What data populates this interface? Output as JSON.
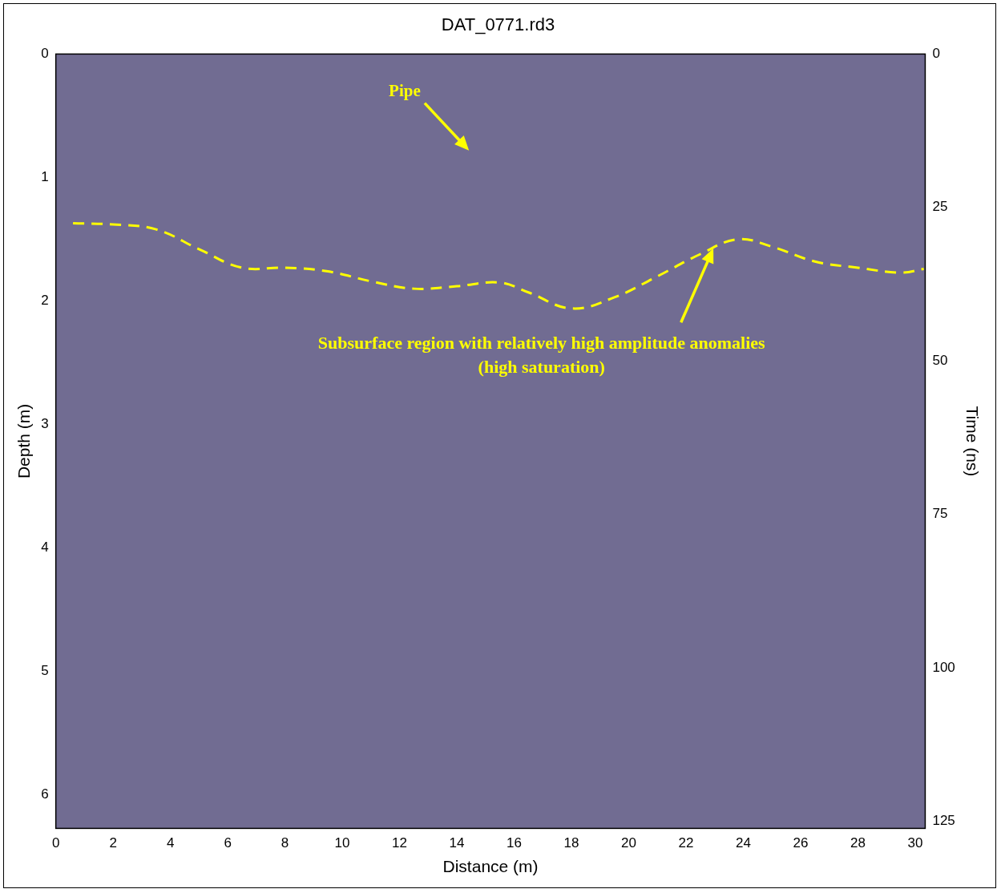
{
  "chart_data": {
    "type": "line",
    "title": "DAT_0771.rd3",
    "x_label": "Distance (m)",
    "y_label": "Depth (m)",
    "y2_label": "Time (ns)",
    "xlim": [
      0,
      30.35
    ],
    "xticks": [
      0,
      2,
      4,
      6,
      8,
      10,
      12,
      14,
      16,
      18,
      20,
      22,
      24,
      26,
      28,
      30
    ],
    "ylim": [
      0,
      6.27
    ],
    "yticks": [
      0,
      1,
      2,
      3,
      4,
      5,
      6
    ],
    "y2lim": [
      0,
      126.2
    ],
    "y2ticks": [
      0,
      25,
      50,
      75,
      100,
      125
    ],
    "grid": false,
    "series": [
      {
        "color": "#ffff00",
        "line_style": "dashed",
        "x": [
          0.6,
          2,
          3.5,
          5,
          6.5,
          8,
          9.5,
          11,
          12.5,
          14,
          15.5,
          16.5,
          18,
          19.5,
          21,
          22.5,
          23.8,
          25,
          26.5,
          28,
          29.5,
          30.3
        ],
        "values": [
          1.37,
          1.38,
          1.42,
          1.58,
          1.73,
          1.73,
          1.76,
          1.84,
          1.9,
          1.88,
          1.85,
          1.93,
          2.06,
          1.97,
          1.8,
          1.62,
          1.5,
          1.56,
          1.68,
          1.73,
          1.77,
          1.74
        ]
      }
    ],
    "annotations": [
      {
        "lines": [
          "Pipe"
        ],
        "x": 14.5,
        "y": 0.8
      },
      {
        "lines": [
          "Subsurface region with relatively high amplitude anomalies",
          "(high saturation)"
        ],
        "x": 23.0,
        "y": 1.55
      }
    ]
  }
}
